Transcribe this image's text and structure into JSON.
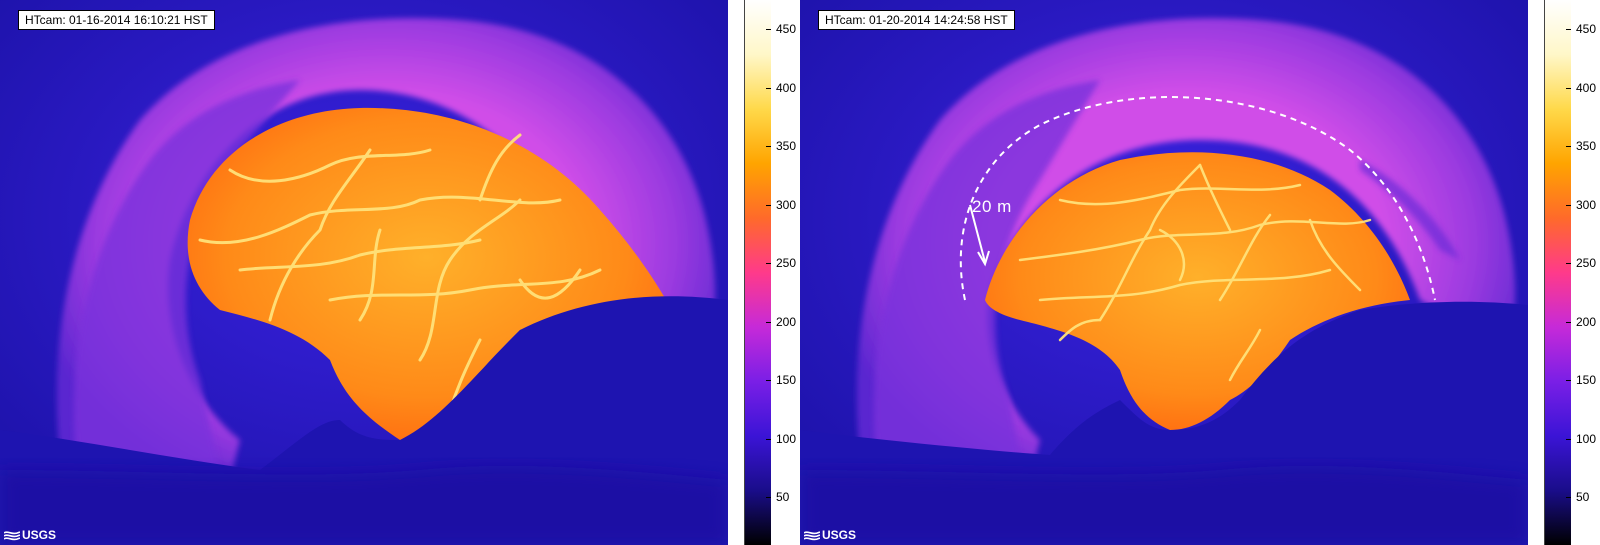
{
  "panels": [
    {
      "timestamp": "HTcam: 01-16-2014 16:10:21 HST",
      "logo_text": "USGS"
    },
    {
      "timestamp": "HTcam: 01-20-2014 14:24:58 HST",
      "logo_text": "USGS",
      "annotation": "20 m"
    }
  ],
  "colorbar": {
    "ticks": [
      "50",
      "100",
      "150",
      "200",
      "250",
      "300",
      "350",
      "400",
      "450"
    ],
    "colors": [
      "#000000",
      "#1a0d8a",
      "#3b14d6",
      "#7a1fe6",
      "#c62ad8",
      "#ff3a8a",
      "#ff6a2a",
      "#ffa400",
      "#ffd94a",
      "#fff7c8",
      "#ffffff"
    ]
  },
  "palette": {
    "background": "#2a1ac8",
    "rim": "#8a3ae0",
    "rim_glow": "#c04ae0",
    "lava": "#ff9a1a",
    "lava_hot": "#ffe27a",
    "dark_ground": "#1e14b0"
  },
  "icons": [
    "usgs-logo-icon",
    "arrow-icon"
  ]
}
